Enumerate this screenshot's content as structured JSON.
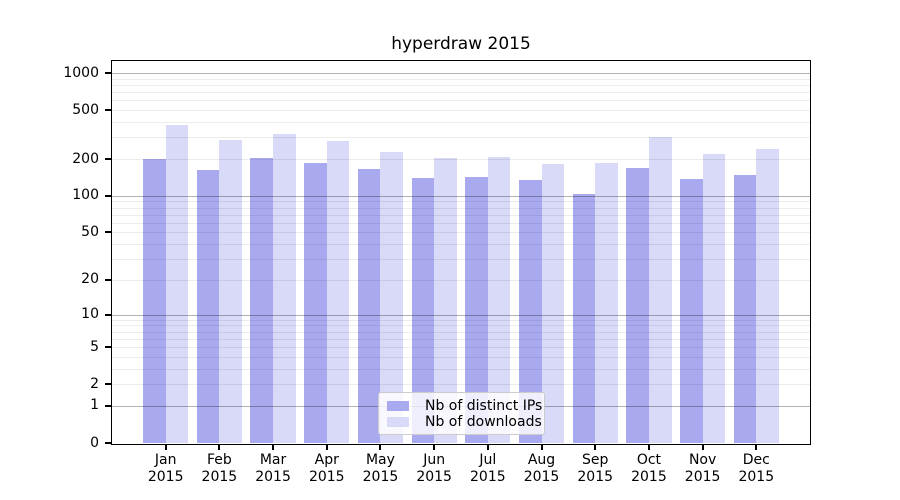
{
  "chart_data": {
    "type": "bar",
    "title": "hyperdraw 2015",
    "categories": [
      "Jan",
      "Feb",
      "Mar",
      "Apr",
      "May",
      "Jun",
      "Jul",
      "Aug",
      "Sep",
      "Oct",
      "Nov",
      "Dec"
    ],
    "category_year": "2015",
    "series": [
      {
        "name": "Nb of distinct IPs",
        "color": "#a9a9f0",
        "values": [
          200,
          163,
          205,
          186,
          167,
          139,
          142,
          134,
          104,
          170,
          138,
          147
        ]
      },
      {
        "name": "Nb of downloads",
        "color": "#d9d9f8",
        "values": [
          380,
          284,
          320,
          278,
          230,
          205,
          208,
          181,
          186,
          300,
          220,
          243
        ]
      }
    ],
    "yscale": "log1p",
    "ylim": [
      0,
      1260
    ],
    "yticks": [
      1000,
      500,
      200,
      100,
      50,
      20,
      10,
      5,
      2,
      1,
      0
    ],
    "grid": {
      "major_ticks": [
        1,
        10,
        100,
        1000
      ],
      "minor_ticks_per_decade": [
        2,
        3,
        4,
        5,
        6,
        7,
        8,
        9
      ],
      "enabled": true
    },
    "legend_position": "lower center",
    "xlabel": "",
    "ylabel": ""
  },
  "colors": {
    "background": "#ffffff",
    "spine": "#000000",
    "major_grid": "rgba(0,0,0,0.30)",
    "minor_grid": "rgba(0,0,0,0.075)",
    "legend_border": "#cccccc",
    "legend_background": "rgba(255,255,255,0.8)",
    "text": "#000000"
  }
}
